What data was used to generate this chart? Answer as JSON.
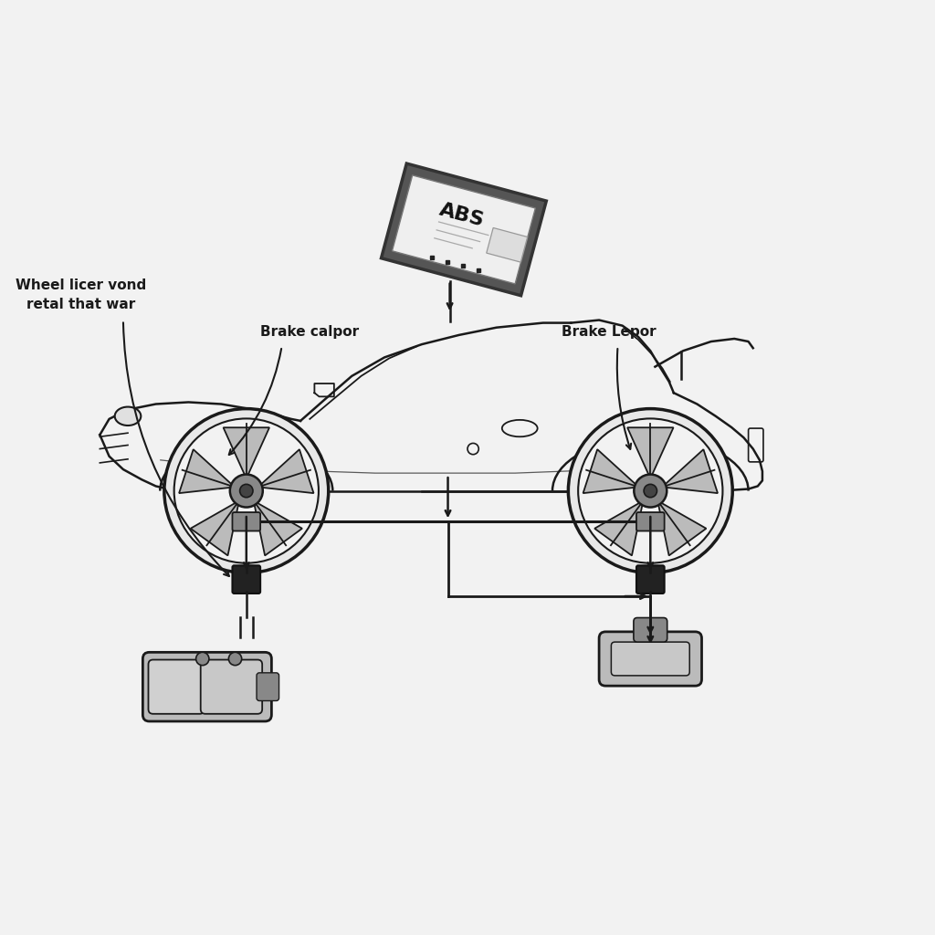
{
  "bg_color": "#f2f2f2",
  "line_color": "#1a1a1a",
  "gray_light": "#bbbbbb",
  "gray_mid": "#888888",
  "gray_dark": "#444444",
  "label_wheel_sensor": "Wheel licer vond\nretal that war",
  "label_brake_caliper": "Brake calpor",
  "label_brake_pad": "Brake Lepor",
  "abs_text": "ABS",
  "font_size_label": 11,
  "font_size_abs": 16
}
